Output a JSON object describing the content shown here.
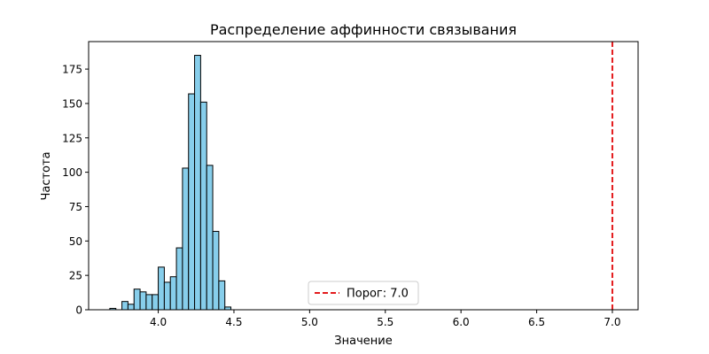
{
  "chart_data": {
    "type": "bar",
    "title": "Распределение аффинности связывания",
    "xlabel": "Значение",
    "ylabel": "Частота",
    "xlim": [
      3.54,
      7.17
    ],
    "ylim": [
      0,
      195
    ],
    "x_ticks": [
      4.0,
      4.5,
      5.0,
      5.5,
      6.0,
      6.5,
      7.0
    ],
    "x_tick_labels": [
      "4.0",
      "4.5",
      "5.0",
      "5.5",
      "6.0",
      "6.5",
      "7.0"
    ],
    "y_ticks": [
      0,
      25,
      50,
      75,
      100,
      125,
      150,
      175
    ],
    "y_tick_labels": [
      "0",
      "25",
      "50",
      "75",
      "100",
      "125",
      "150",
      "175"
    ],
    "grid": false,
    "bins": [
      {
        "x0": 3.68,
        "x1": 3.72,
        "count": 1
      },
      {
        "x0": 3.72,
        "x1": 3.76,
        "count": 0
      },
      {
        "x0": 3.76,
        "x1": 3.8,
        "count": 6
      },
      {
        "x0": 3.8,
        "x1": 3.84,
        "count": 4
      },
      {
        "x0": 3.84,
        "x1": 3.88,
        "count": 15
      },
      {
        "x0": 3.88,
        "x1": 3.92,
        "count": 13
      },
      {
        "x0": 3.92,
        "x1": 3.96,
        "count": 11
      },
      {
        "x0": 3.96,
        "x1": 4.0,
        "count": 11
      },
      {
        "x0": 4.0,
        "x1": 4.04,
        "count": 31
      },
      {
        "x0": 4.04,
        "x1": 4.08,
        "count": 20
      },
      {
        "x0": 4.08,
        "x1": 4.12,
        "count": 24
      },
      {
        "x0": 4.12,
        "x1": 4.16,
        "count": 45
      },
      {
        "x0": 4.16,
        "x1": 4.2,
        "count": 103
      },
      {
        "x0": 4.2,
        "x1": 4.24,
        "count": 157
      },
      {
        "x0": 4.24,
        "x1": 4.28,
        "count": 185
      },
      {
        "x0": 4.28,
        "x1": 4.32,
        "count": 151
      },
      {
        "x0": 4.32,
        "x1": 4.36,
        "count": 105
      },
      {
        "x0": 4.36,
        "x1": 4.4,
        "count": 57
      },
      {
        "x0": 4.4,
        "x1": 4.44,
        "count": 21
      },
      {
        "x0": 4.44,
        "x1": 4.48,
        "count": 2
      }
    ],
    "bar_color": "#87ceeb",
    "bar_edge_color": "#000000",
    "threshold": {
      "value": 7.0,
      "label": "Порог: 7.0",
      "color": "#e31a1c",
      "style": "dashed"
    },
    "legend_position": "bottom-center"
  }
}
